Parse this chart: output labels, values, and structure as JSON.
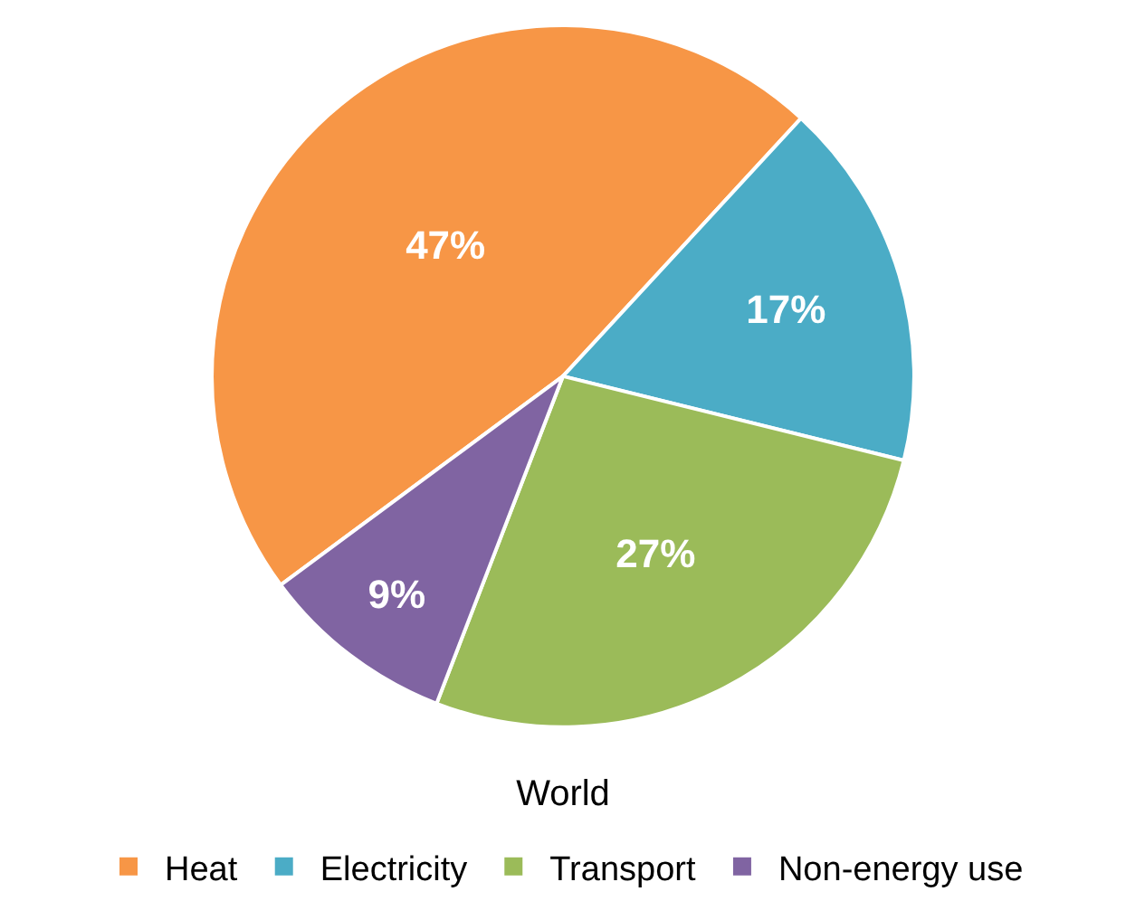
{
  "chart_data": {
    "type": "pie",
    "title": "World",
    "categories": [
      "Heat",
      "Electricity",
      "Transport",
      "Non-energy use"
    ],
    "values": [
      47,
      17,
      27,
      9
    ],
    "colors": [
      "#f79646",
      "#4bacc6",
      "#9bbb59",
      "#8064a2"
    ],
    "value_labels": [
      "47%",
      "17%",
      "27%",
      "9%"
    ],
    "legend": "bottom"
  }
}
